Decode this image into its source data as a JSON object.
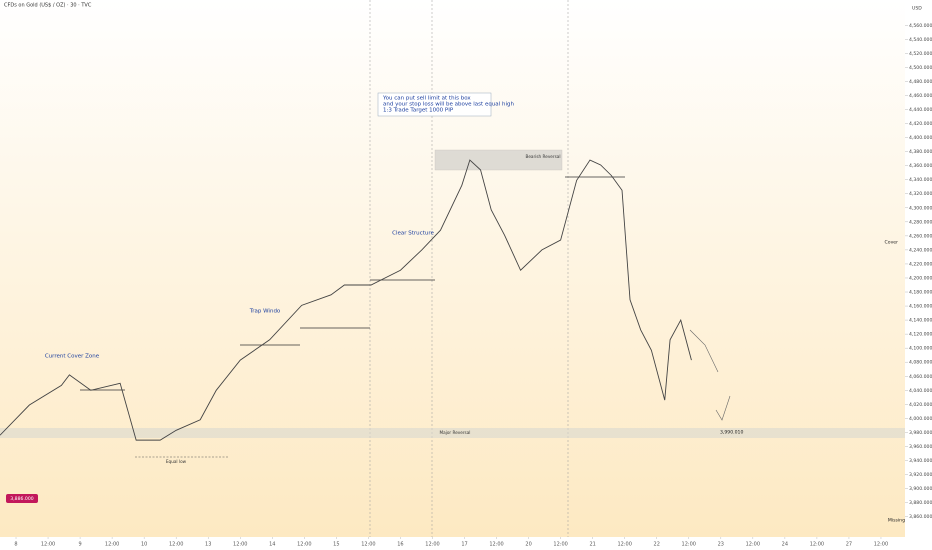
{
  "chart_data": {
    "type": "line",
    "title": "CFDs on Gold (US$ / OZ) · 30 · TVC",
    "currency": "USD",
    "x": [
      -6,
      5,
      17,
      20,
      28,
      39,
      45,
      54,
      60,
      69,
      75,
      84,
      95,
      107,
      118,
      123,
      133,
      144,
      152,
      159,
      167,
      170,
      174,
      178,
      183,
      189,
      197,
      204,
      210,
      215,
      219,
      223,
      227,
      230,
      234,
      238,
      243,
      245,
      249,
      253
    ],
    "series": [
      {
        "name": "Gold",
        "color": "#444444",
        "values": [
          3976,
          4019,
          4047,
          4062,
          4040,
          4050,
          3969,
          3969,
          3983,
          3998,
          4040,
          4083,
          4112,
          4161,
          4176,
          4190,
          4190,
          4211,
          4240,
          4268,
          4332,
          4368,
          4354,
          4297,
          4261,
          4211,
          4240,
          4254,
          4339,
          4368,
          4361,
          4346,
          4325,
          4169,
          4126,
          4097,
          4026,
          4112,
          4140,
          4083
        ]
      }
    ],
    "xlim": [
      -6,
      333
    ],
    "ylim": [
      3831,
      4596
    ],
    "xticks": [
      {
        "value": 0,
        "label": "8"
      },
      {
        "value": 12,
        "label": "12:00"
      },
      {
        "value": 24,
        "label": "9"
      },
      {
        "value": 36,
        "label": "12:00"
      },
      {
        "value": 48,
        "label": "10"
      },
      {
        "value": 60,
        "label": "12:00"
      },
      {
        "value": 72,
        "label": "13"
      },
      {
        "value": 84,
        "label": "12:00"
      },
      {
        "value": 96,
        "label": "14"
      },
      {
        "value": 108,
        "label": "12:00"
      },
      {
        "value": 120,
        "label": "15"
      },
      {
        "value": 132,
        "label": "12:00"
      },
      {
        "value": 144,
        "label": "16"
      },
      {
        "value": 156,
        "label": "12:00"
      },
      {
        "value": 168,
        "label": "17"
      },
      {
        "value": 180,
        "label": "12:00"
      },
      {
        "value": 192,
        "label": "20"
      },
      {
        "value": 204,
        "label": "12:00"
      },
      {
        "value": 216,
        "label": "21"
      },
      {
        "value": 228,
        "label": "12:00"
      },
      {
        "value": 240,
        "label": "22"
      },
      {
        "value": 252,
        "label": "12:00"
      },
      {
        "value": 264,
        "label": "23"
      },
      {
        "value": 276,
        "label": "12:00"
      },
      {
        "value": 288,
        "label": "24"
      },
      {
        "value": 300,
        "label": "12:00"
      },
      {
        "value": 312,
        "label": "27"
      },
      {
        "value": 324,
        "label": "12:00"
      }
    ],
    "yticks": [
      {
        "value": 4560,
        "label": "4,560.000"
      },
      {
        "value": 4540,
        "label": "4,540.000"
      },
      {
        "value": 4520,
        "label": "4,520.000"
      },
      {
        "value": 4500,
        "label": "4,500.000"
      },
      {
        "value": 4480,
        "label": "4,480.000"
      },
      {
        "value": 4460,
        "label": "4,460.000"
      },
      {
        "value": 4440,
        "label": "4,440.000"
      },
      {
        "value": 4420,
        "label": "4,420.000"
      },
      {
        "value": 4400,
        "label": "4,400.000"
      },
      {
        "value": 4380,
        "label": "4,380.000"
      },
      {
        "value": 4360,
        "label": "4,360.000"
      },
      {
        "value": 4340,
        "label": "4,340.000"
      },
      {
        "value": 4320,
        "label": "4,320.000"
      },
      {
        "value": 4300,
        "label": "4,300.000"
      },
      {
        "value": 4280,
        "label": "4,280.000"
      },
      {
        "value": 4260,
        "label": "4,260.000"
      },
      {
        "value": 4240,
        "label": "4,240.000"
      },
      {
        "value": 4220,
        "label": "4,220.000"
      },
      {
        "value": 4200,
        "label": "4,200.000"
      },
      {
        "value": 4180,
        "label": "4,180.000"
      },
      {
        "value": 4160,
        "label": "4,160.000"
      },
      {
        "value": 4140,
        "label": "4,140.000"
      },
      {
        "value": 4120,
        "label": "4,120.000"
      },
      {
        "value": 4100,
        "label": "4,100.000"
      },
      {
        "value": 4080,
        "label": "4,080.000"
      },
      {
        "value": 4060,
        "label": "4,060.000"
      },
      {
        "value": 4040,
        "label": "4,040.000"
      },
      {
        "value": 4020,
        "label": "4,020.000"
      },
      {
        "value": 4000,
        "label": "4,000.000"
      },
      {
        "value": 3980,
        "label": "3,980.000"
      },
      {
        "value": 3960,
        "label": "3,960.000"
      },
      {
        "value": 3940,
        "label": "3,940.000"
      },
      {
        "value": 3920,
        "label": "3,920.000"
      },
      {
        "value": 3900,
        "label": "3,900.000"
      },
      {
        "value": 3880,
        "label": "3,880.000"
      },
      {
        "value": 3860,
        "label": "3,860.000"
      }
    ],
    "annotations": [
      "Current Cover Zone",
      "Trap Windo",
      "Clear Structure",
      "You can put sell limit at this box",
      "and your stop loss will be above last equal high",
      "1:3 Trade Target 1000 PIP",
      "Bearish Reversal",
      "Major Reversal",
      "Equal low"
    ],
    "price_tags": [
      "3,886.000",
      "3,990.010",
      "Cover",
      "Missing"
    ]
  }
}
